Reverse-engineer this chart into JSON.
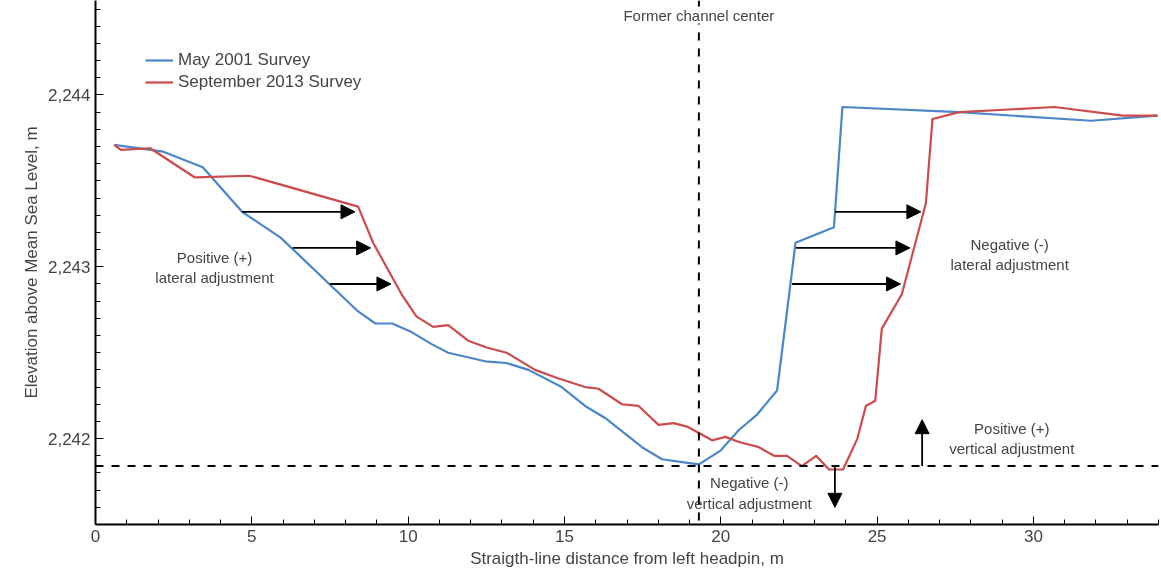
{
  "chart_data": {
    "type": "line",
    "xlabel": "Straigth-line distance from left headpin, m",
    "ylabel": "Elevation above Mean Sea Level, m",
    "xlim": [
      0,
      34
    ],
    "ylim": [
      2241.5,
      2244.55
    ],
    "xticks": [
      0,
      5,
      10,
      15,
      20,
      25,
      30
    ],
    "yticks": [
      {
        "value": 2242,
        "label": "2,242"
      },
      {
        "value": 2243,
        "label": "2,243"
      },
      {
        "value": 2244,
        "label": "2,244"
      }
    ],
    "grid": false,
    "legend": "top left",
    "line_style": "solid",
    "marker": "none",
    "series": [
      {
        "name": "May 2001 Survey",
        "color": "#4a86c8",
        "x": [
          0.6,
          2.17,
          3.43,
          4.69,
          5.92,
          8.4,
          8.95,
          9.49,
          10.11,
          10.75,
          11.28,
          12.46,
          13.14,
          13.85,
          14.91,
          15.66,
          16.3,
          17.48,
          18.12,
          18.87,
          19.3,
          19.99,
          20.58,
          21.16,
          21.8,
          22.18,
          22.39,
          23.62,
          23.89,
          27.63,
          31.85,
          33.97
        ],
        "values": [
          2243.71,
          2243.67,
          2243.58,
          2243.32,
          2243.17,
          2242.74,
          2242.67,
          2242.67,
          2242.62,
          2242.55,
          2242.5,
          2242.45,
          2242.44,
          2242.4,
          2242.3,
          2242.19,
          2242.12,
          2241.95,
          2241.88,
          2241.86,
          2241.85,
          2241.93,
          2242.05,
          2242.14,
          2242.28,
          2242.83,
          2243.14,
          2243.23,
          2243.93,
          2243.9,
          2243.85,
          2243.88
        ]
      },
      {
        "name": "September 2013 Survey",
        "color": "#cc4b4b",
        "x": [
          0.6,
          0.81,
          1.75,
          3.18,
          4.93,
          8.4,
          8.88,
          9.79,
          10.27,
          10.8,
          11.28,
          11.92,
          12.51,
          13.15,
          14.06,
          14.81,
          15.66,
          16.09,
          16.84,
          17.37,
          18.01,
          18.49,
          18.92,
          19.72,
          20.15,
          20.58,
          21.22,
          21.7,
          22.12,
          22.59,
          23.05,
          23.46,
          23.91,
          24.37,
          24.64,
          24.94,
          25.15,
          25.79,
          26.56,
          26.77,
          27.63,
          30.67,
          32.86,
          33.97
        ],
        "values": [
          2243.71,
          2243.68,
          2243.69,
          2243.52,
          2243.53,
          2243.35,
          2243.14,
          2242.84,
          2242.71,
          2242.65,
          2242.66,
          2242.57,
          2242.53,
          2242.5,
          2242.4,
          2242.35,
          2242.3,
          2242.29,
          2242.2,
          2242.19,
          2242.08,
          2242.09,
          2242.07,
          2241.99,
          2242.01,
          2241.98,
          2241.95,
          2241.9,
          2241.9,
          2241.84,
          2241.9,
          2241.82,
          2241.82,
          2242.0,
          2242.19,
          2242.22,
          2242.64,
          2242.84,
          2243.37,
          2243.86,
          2243.9,
          2243.93,
          2243.88,
          2243.88
        ]
      }
    ],
    "ref_lines": [
      {
        "axis": "x",
        "value": 19.3,
        "label": "Former channel center",
        "color": "#000000",
        "line_style": "dashed"
      },
      {
        "axis": "y",
        "value": 2241.84,
        "color": "#000000",
        "line_style": "dashed"
      }
    ],
    "annotations": [
      "Positive (+)\nlateral adjustment",
      "Negative (-)\nlateral adjustment",
      "Positive (+)\nvertical adjustment",
      "Negative (-)\nvertical adjustment"
    ]
  }
}
